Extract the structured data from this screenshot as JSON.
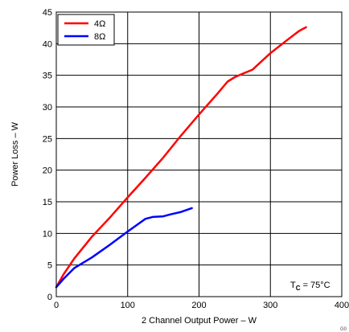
{
  "chart_data": {
    "type": "line",
    "title": "",
    "xlabel": "2 Channel Output Power – W",
    "ylabel": "Power Loss – W",
    "xlim": [
      0,
      400
    ],
    "ylim": [
      0,
      45
    ],
    "xticks": [
      "0",
      "100",
      "200",
      "300",
      "400"
    ],
    "yticks": [
      "0",
      "5",
      "10",
      "15",
      "20",
      "25",
      "30",
      "35",
      "40",
      "45"
    ],
    "grid": true,
    "legend_position": "top-left",
    "annotation": {
      "text": "T",
      "subscript": "C",
      "suffix": " = 75°C"
    },
    "figure_id": "G0",
    "series": [
      {
        "name": "4Ω",
        "color": "#ff0000",
        "x": [
          0,
          10,
          25,
          50,
          75,
          100,
          125,
          150,
          175,
          200,
          225,
          240,
          250,
          260,
          275,
          300,
          325,
          340,
          350
        ],
        "y": [
          1.5,
          3.5,
          6,
          9.5,
          12.5,
          15.7,
          18.8,
          22,
          25.5,
          28.8,
          32,
          34,
          34.7,
          35.2,
          35.9,
          38.5,
          40.7,
          42,
          42.6
        ]
      },
      {
        "name": "8Ω",
        "color": "#0000ff",
        "x": [
          0,
          10,
          25,
          50,
          75,
          100,
          115,
          125,
          135,
          150,
          160,
          175,
          190
        ],
        "y": [
          1.5,
          2.8,
          4.5,
          6.2,
          8.2,
          10.3,
          11.5,
          12.3,
          12.6,
          12.7,
          13,
          13.4,
          14
        ]
      }
    ]
  }
}
